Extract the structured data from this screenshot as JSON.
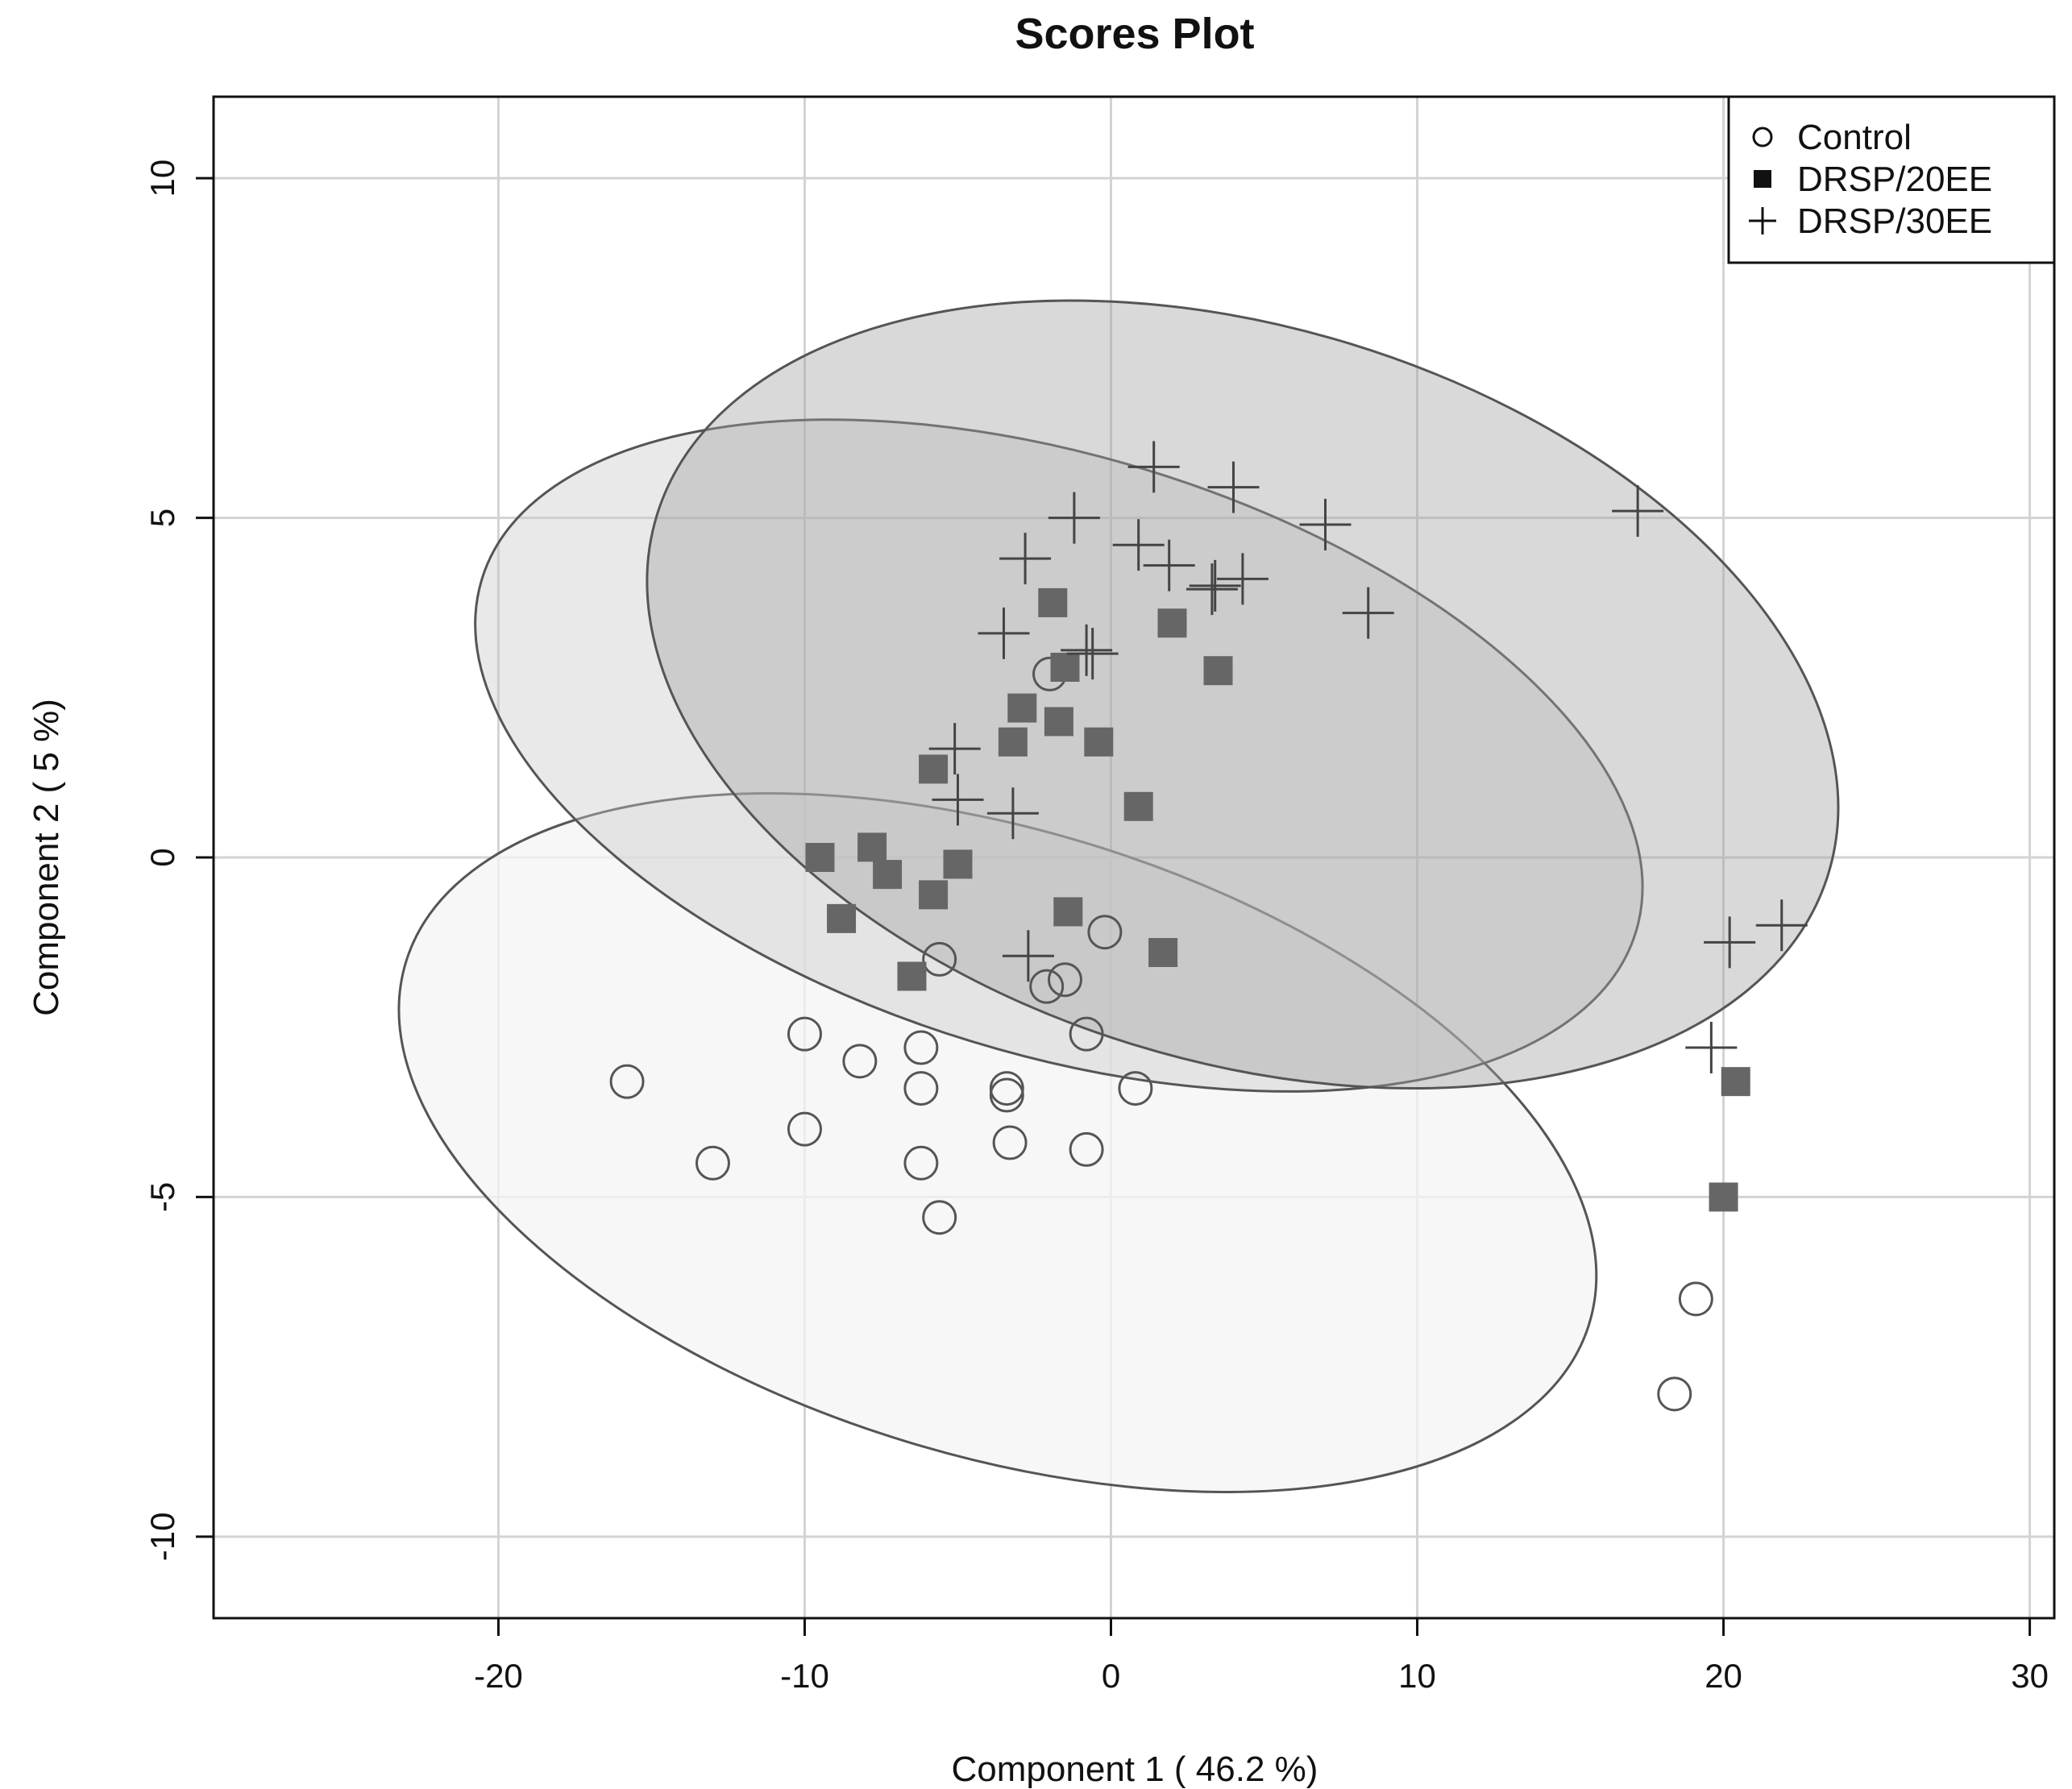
{
  "chart_data": {
    "type": "scatter",
    "title": "Scores Plot",
    "xlabel": "Component 1 ( 46.2 %)",
    "ylabel": "Component 2 ( 5 %)",
    "xlim": [
      -29.3,
      30.8
    ],
    "ylim": [
      -11.2,
      11.2
    ],
    "xticks": [
      -20,
      -10,
      0,
      10,
      20,
      30
    ],
    "yticks": [
      -10,
      -5,
      0,
      5,
      10
    ],
    "xtick_labels": [
      "-20",
      "-10",
      "0",
      "10",
      "20",
      "30"
    ],
    "ytick_labels": [
      "-10",
      "-5",
      "0",
      "5",
      "10"
    ],
    "grid": true,
    "legend_position": "top-right",
    "series": [
      {
        "name": "Control",
        "marker": "open-circle",
        "color": "#555555",
        "points": [
          [
            -15.8,
            -3.3
          ],
          [
            -13.0,
            -4.5
          ],
          [
            -10.0,
            -2.6
          ],
          [
            -10.0,
            -4.0
          ],
          [
            -8.2,
            -3.0
          ],
          [
            -6.2,
            -2.8
          ],
          [
            -6.2,
            -3.4
          ],
          [
            -6.2,
            -4.5
          ],
          [
            -5.6,
            -5.3
          ],
          [
            -5.6,
            -1.5
          ],
          [
            -3.4,
            -3.5
          ],
          [
            -3.4,
            -3.4
          ],
          [
            -3.3,
            -4.2
          ],
          [
            -2.1,
            -1.9
          ],
          [
            -2.0,
            2.7
          ],
          [
            -1.5,
            -1.8
          ],
          [
            -0.8,
            -2.6
          ],
          [
            -0.8,
            -4.3
          ],
          [
            -0.2,
            -1.1
          ],
          [
            0.8,
            -3.4
          ],
          [
            18.4,
            -7.9
          ],
          [
            19.1,
            -6.5
          ]
        ]
      },
      {
        "name": "DRSP/20EE",
        "marker": "filled-square",
        "color": "#666666",
        "points": [
          [
            -9.5,
            0.0
          ],
          [
            -8.8,
            -0.9
          ],
          [
            -7.8,
            0.15
          ],
          [
            -7.3,
            -0.25
          ],
          [
            -6.5,
            -1.75
          ],
          [
            -5.8,
            1.3
          ],
          [
            -5.8,
            -0.55
          ],
          [
            -5.0,
            -0.1
          ],
          [
            -3.2,
            1.7
          ],
          [
            -2.9,
            2.2
          ],
          [
            -1.9,
            3.75
          ],
          [
            -1.7,
            2.0
          ],
          [
            -1.5,
            2.8
          ],
          [
            -1.4,
            -0.8
          ],
          [
            -0.4,
            1.7
          ],
          [
            0.9,
            0.75
          ],
          [
            1.7,
            -1.4
          ],
          [
            2.0,
            3.45
          ],
          [
            3.5,
            2.75
          ],
          [
            20.0,
            -5.0
          ],
          [
            20.4,
            -3.3
          ]
        ]
      },
      {
        "name": "DRSP/30EE",
        "marker": "plus",
        "color": "#444444",
        "points": [
          [
            -5.1,
            1.6
          ],
          [
            -5.0,
            0.85
          ],
          [
            -3.5,
            3.3
          ],
          [
            -3.2,
            0.65
          ],
          [
            -2.8,
            4.4
          ],
          [
            -2.7,
            -1.45
          ],
          [
            -1.2,
            5.0
          ],
          [
            -0.8,
            3.05
          ],
          [
            -0.6,
            3.0
          ],
          [
            0.9,
            4.6
          ],
          [
            1.4,
            5.75
          ],
          [
            1.9,
            4.3
          ],
          [
            3.3,
            3.95
          ],
          [
            3.4,
            4.0
          ],
          [
            4.0,
            5.45
          ],
          [
            4.3,
            4.1
          ],
          [
            7.0,
            4.9
          ],
          [
            8.4,
            3.6
          ],
          [
            17.2,
            5.1
          ],
          [
            19.6,
            -2.8
          ],
          [
            20.2,
            -1.25
          ],
          [
            21.9,
            -1.0
          ]
        ]
      }
    ],
    "ellipses": [
      {
        "series": "Control",
        "center": [
          -3.7,
          -4.2
        ],
        "semi_axes": [
          20.2,
          4.6
        ],
        "angle_deg": -17,
        "fill": "#f4f4f4",
        "opacity": 0.75
      },
      {
        "series": "DRSP/20EE",
        "center": [
          -1.7,
          1.5
        ],
        "semi_axes": [
          19.7,
          4.4
        ],
        "angle_deg": -17,
        "fill": "#c8c8c8",
        "opacity": 0.4
      },
      {
        "series": "DRSP/30EE",
        "center": [
          4.3,
          2.4
        ],
        "semi_axes": [
          20.0,
          5.4
        ],
        "angle_deg": -17,
        "fill": "#9f9f9f",
        "opacity": 0.4
      }
    ]
  }
}
